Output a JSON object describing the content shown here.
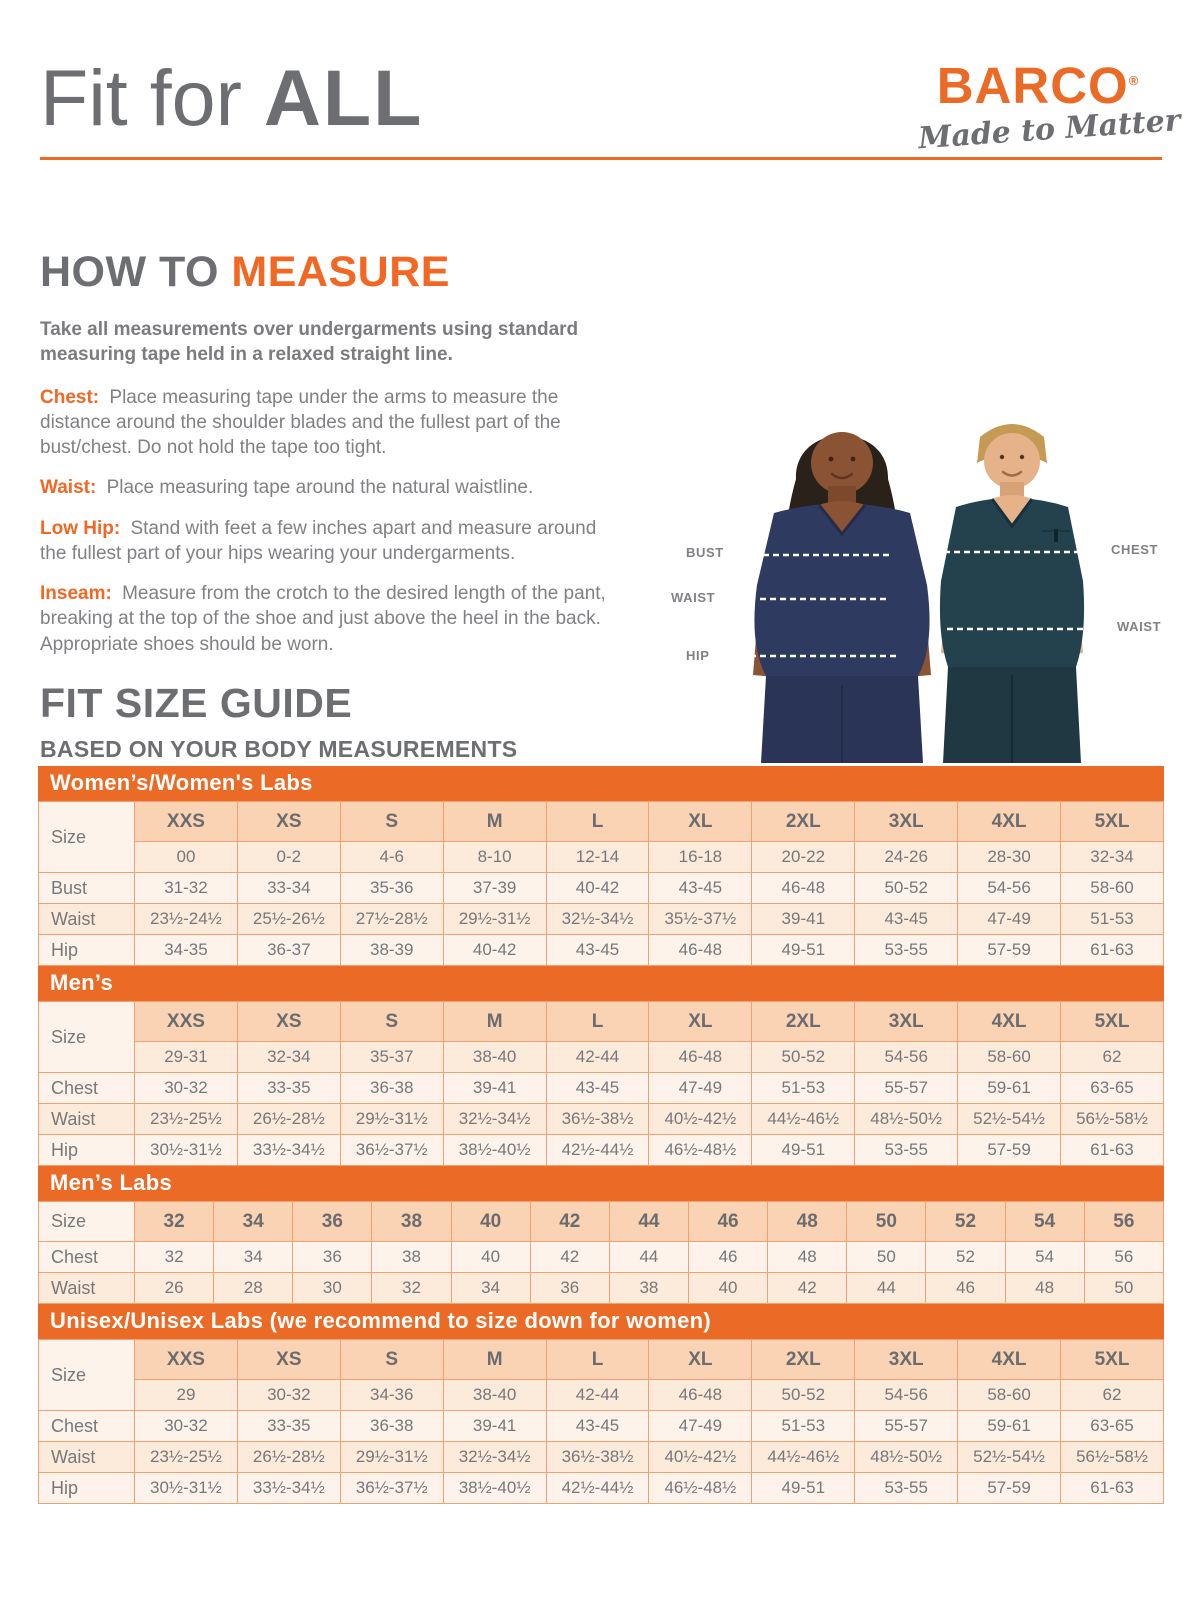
{
  "header": {
    "title_regular": "Fit for ",
    "title_bold": "ALL",
    "brand": "BARCO",
    "brand_mark": "®",
    "tagline": "Made to Matter"
  },
  "how_to_measure": {
    "heading_prefix": "HOW TO ",
    "heading_accent": "MEASURE",
    "intro": "Take all measurements over undergarments using standard measuring tape held in a relaxed straight line.",
    "items": [
      {
        "label": "Chest:",
        "text": "Place measuring tape under the arms to measure the distance around the shoulder blades and the fullest part of the bust/chest. Do not hold the tape too tight."
      },
      {
        "label": "Waist:",
        "text": "Place measuring tape around the natural waistline."
      },
      {
        "label": "Low Hip:",
        "text": "Stand with feet a few inches apart and measure around the fullest part of your hips wearing your undergarments."
      },
      {
        "label": "Inseam:",
        "text": "Measure from the crotch to the desired length of the pant, breaking at the top of the shoe and just above the heel in the back. Appropriate shoes should be worn."
      }
    ]
  },
  "figure": {
    "labels": {
      "bust": "BUST",
      "waist_female": "WAIST",
      "hip": "HIP",
      "chest": "CHEST",
      "waist_male": "WAIST"
    }
  },
  "size_guide": {
    "heading": "FIT SIZE GUIDE",
    "subheading": "BASED ON YOUR BODY MEASUREMENTS",
    "tables": [
      {
        "title": "Women’s/Women's Labs",
        "size_label": "Size",
        "sizes": [
          "XXS",
          "XS",
          "S",
          "M",
          "L",
          "XL",
          "2XL",
          "3XL",
          "4XL",
          "5XL"
        ],
        "sub_sizes": [
          "00",
          "0-2",
          "4-6",
          "8-10",
          "12-14",
          "16-18",
          "20-22",
          "24-26",
          "28-30",
          "32-34"
        ],
        "rows": [
          {
            "label": "Bust",
            "values": [
              "31-32",
              "33-34",
              "35-36",
              "37-39",
              "40-42",
              "43-45",
              "46-48",
              "50-52",
              "54-56",
              "58-60"
            ]
          },
          {
            "label": "Waist",
            "values": [
              "23½-24½",
              "25½-26½",
              "27½-28½",
              "29½-31½",
              "32½-34½",
              "35½-37½",
              "39-41",
              "43-45",
              "47-49",
              "51-53"
            ]
          },
          {
            "label": "Hip",
            "values": [
              "34-35",
              "36-37",
              "38-39",
              "40-42",
              "43-45",
              "46-48",
              "49-51",
              "53-55",
              "57-59",
              "61-63"
            ]
          }
        ]
      },
      {
        "title": "Men’s",
        "size_label": "Size",
        "sizes": [
          "XXS",
          "XS",
          "S",
          "M",
          "L",
          "XL",
          "2XL",
          "3XL",
          "4XL",
          "5XL"
        ],
        "sub_sizes": [
          "29-31",
          "32-34",
          "35-37",
          "38-40",
          "42-44",
          "46-48",
          "50-52",
          "54-56",
          "58-60",
          "62"
        ],
        "rows": [
          {
            "label": "Chest",
            "values": [
              "30-32",
              "33-35",
              "36-38",
              "39-41",
              "43-45",
              "47-49",
              "51-53",
              "55-57",
              "59-61",
              "63-65"
            ]
          },
          {
            "label": "Waist",
            "values": [
              "23½-25½",
              "26½-28½",
              "29½-31½",
              "32½-34½",
              "36½-38½",
              "40½-42½",
              "44½-46½",
              "48½-50½",
              "52½-54½",
              "56½-58½"
            ]
          },
          {
            "label": "Hip",
            "values": [
              "30½-31½",
              "33½-34½",
              "36½-37½",
              "38½-40½",
              "42½-44½",
              "46½-48½",
              "49-51",
              "53-55",
              "57-59",
              "61-63"
            ]
          }
        ]
      },
      {
        "title": "Men’s Labs",
        "size_label": "Size",
        "sizes": [
          "32",
          "34",
          "36",
          "38",
          "40",
          "42",
          "44",
          "46",
          "48",
          "50",
          "52",
          "54",
          "56"
        ],
        "sub_sizes": null,
        "rows": [
          {
            "label": "Chest",
            "values": [
              "32",
              "34",
              "36",
              "38",
              "40",
              "42",
              "44",
              "46",
              "48",
              "50",
              "52",
              "54",
              "56"
            ]
          },
          {
            "label": "Waist",
            "values": [
              "26",
              "28",
              "30",
              "32",
              "34",
              "36",
              "38",
              "40",
              "42",
              "44",
              "46",
              "48",
              "50"
            ]
          }
        ]
      },
      {
        "title": "Unisex/Unisex Labs (we recommend to size down for women)",
        "size_label": "Size",
        "sizes": [
          "XXS",
          "XS",
          "S",
          "M",
          "L",
          "XL",
          "2XL",
          "3XL",
          "4XL",
          "5XL"
        ],
        "sub_sizes": [
          "29",
          "30-32",
          "34-36",
          "38-40",
          "42-44",
          "46-48",
          "50-52",
          "54-56",
          "58-60",
          "62"
        ],
        "rows": [
          {
            "label": "Chest",
            "values": [
              "30-32",
              "33-35",
              "36-38",
              "39-41",
              "43-45",
              "47-49",
              "51-53",
              "55-57",
              "59-61",
              "63-65"
            ]
          },
          {
            "label": "Waist",
            "values": [
              "23½-25½",
              "26½-28½",
              "29½-31½",
              "32½-34½",
              "36½-38½",
              "40½-42½",
              "44½-46½",
              "48½-50½",
              "52½-54½",
              "56½-58½"
            ]
          },
          {
            "label": "Hip",
            "values": [
              "30½-31½",
              "33½-34½",
              "36½-37½",
              "38½-40½",
              "42½-44½",
              "46½-48½",
              "49-51",
              "53-55",
              "57-59",
              "61-63"
            ]
          }
        ]
      }
    ]
  },
  "colors": {
    "accent_orange": "#EB6A26",
    "text_accent_orange": "#F26722",
    "heading_gray": "#6D6E71",
    "body_gray": "#808184",
    "table_border": "#F2A173",
    "size_header_bg": "#F9D3B4",
    "row_light_bg": "#FDF3EB",
    "row_dark_bg": "#FCEADB",
    "banner_text": "#FFFFFF",
    "female_scrub_navy": "#2E3A5F",
    "male_scrub_teal": "#24424D"
  }
}
